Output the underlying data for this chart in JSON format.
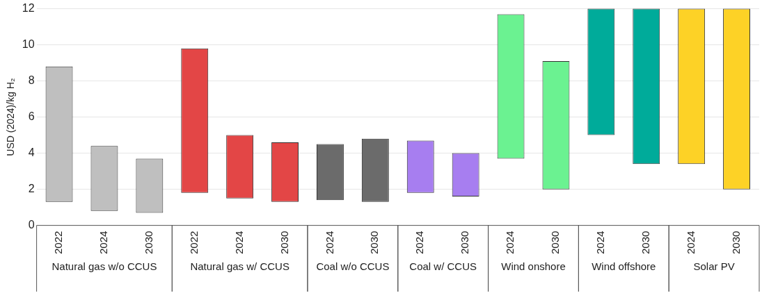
{
  "chart_data": {
    "type": "bar",
    "ylabel": "USD (2024)/kg H₂",
    "categories": [
      "2022",
      "2024",
      "2030",
      "2022",
      "2024",
      "2030",
      "2024",
      "2030",
      "2024",
      "2030",
      "2024",
      "2030",
      "2024",
      "2030",
      "2024",
      "2030"
    ],
    "series": [
      {
        "color": "#bfbfbf",
        "base": [
          1.3,
          0.8,
          0.7,
          null,
          null,
          null,
          null,
          null,
          null,
          null,
          null,
          null,
          null,
          null,
          null,
          null
        ],
        "values": [
          7.5,
          3.6,
          3.0,
          null,
          null,
          null,
          null,
          null,
          null,
          null,
          null,
          null,
          null,
          null,
          null,
          null
        ]
      },
      {
        "color": "#e34646",
        "base": [
          null,
          null,
          null,
          1.8,
          1.5,
          1.3,
          null,
          null,
          null,
          null,
          null,
          null,
          null,
          null,
          null,
          null
        ],
        "values": [
          null,
          null,
          null,
          8.0,
          3.5,
          3.3,
          null,
          null,
          null,
          null,
          null,
          null,
          null,
          null,
          null,
          null
        ]
      },
      {
        "color": "#6b6b6b",
        "base": [
          null,
          null,
          null,
          null,
          null,
          null,
          1.4,
          1.3,
          null,
          null,
          null,
          null,
          null,
          null,
          null,
          null
        ],
        "values": [
          null,
          null,
          null,
          null,
          null,
          null,
          3.1,
          3.5,
          null,
          null,
          null,
          null,
          null,
          null,
          null,
          null
        ]
      },
      {
        "color": "#a77ef0",
        "base": [
          null,
          null,
          null,
          null,
          null,
          null,
          null,
          null,
          1.8,
          1.6,
          null,
          null,
          null,
          null,
          null,
          null
        ],
        "values": [
          null,
          null,
          null,
          null,
          null,
          null,
          null,
          null,
          2.9,
          2.4,
          null,
          null,
          null,
          null,
          null,
          null
        ]
      },
      {
        "color": "#6bf291",
        "base": [
          null,
          null,
          null,
          null,
          null,
          null,
          null,
          null,
          null,
          null,
          3.7,
          2.0,
          null,
          null,
          null,
          null
        ],
        "values": [
          null,
          null,
          null,
          null,
          null,
          null,
          null,
          null,
          null,
          null,
          8.0,
          7.1,
          null,
          null,
          null,
          null
        ]
      },
      {
        "color": "#00ab9a",
        "base": [
          null,
          null,
          null,
          null,
          null,
          null,
          null,
          null,
          null,
          null,
          null,
          null,
          5.0,
          3.4,
          null,
          null
        ],
        "values": [
          null,
          null,
          null,
          null,
          null,
          null,
          null,
          null,
          null,
          null,
          null,
          null,
          7.0,
          8.6,
          null,
          null
        ]
      },
      {
        "color": "#fdd226",
        "base": [
          null,
          null,
          null,
          null,
          null,
          null,
          null,
          null,
          null,
          null,
          null,
          null,
          null,
          null,
          3.4,
          2.0
        ],
        "values": [
          null,
          null,
          null,
          null,
          null,
          null,
          null,
          null,
          null,
          null,
          null,
          null,
          null,
          null,
          8.6,
          10.0
        ]
      }
    ],
    "annotations": [
      "Natural gas w/o CCUS",
      "Natural gas w/ CCUS",
      "Coal w/o CCUS",
      "Coal w/ CCUS",
      "Wind onshore",
      "Wind offshore",
      "Solar PV"
    ],
    "ylim": [
      0,
      12
    ],
    "yticks": [
      0,
      2,
      4,
      6,
      8,
      10,
      12
    ],
    "grid": "y",
    "legend": false
  }
}
